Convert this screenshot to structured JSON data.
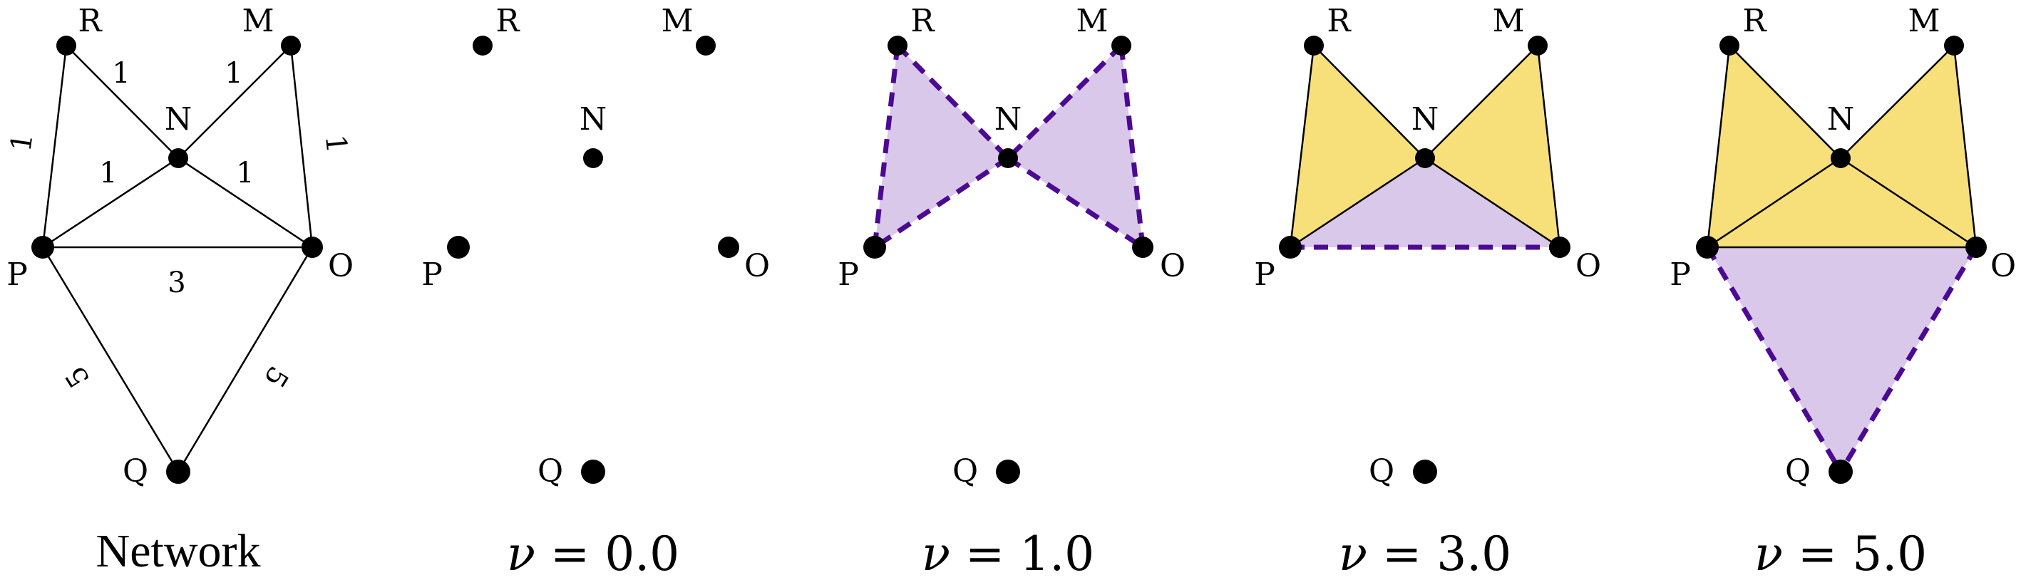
{
  "nodes": [
    "R",
    "M",
    "N",
    "P",
    "O",
    "Q"
  ],
  "edges": [
    {
      "from": "R",
      "to": "P",
      "weight": "1"
    },
    {
      "from": "R",
      "to": "N",
      "weight": "1"
    },
    {
      "from": "M",
      "to": "N",
      "weight": "1"
    },
    {
      "from": "M",
      "to": "O",
      "weight": "1"
    },
    {
      "from": "N",
      "to": "P",
      "weight": "1"
    },
    {
      "from": "N",
      "to": "O",
      "weight": "1"
    },
    {
      "from": "P",
      "to": "O",
      "weight": "3"
    },
    {
      "from": "P",
      "to": "Q",
      "weight": "5"
    },
    {
      "from": "O",
      "to": "Q",
      "weight": "5"
    }
  ],
  "panels": [
    {
      "caption": "Network",
      "kind": "network"
    },
    {
      "caption_symbol": "ν",
      "caption_eq": " = ",
      "caption_value": "0.0",
      "kind": "filtration"
    },
    {
      "caption_symbol": "ν",
      "caption_eq": " = ",
      "caption_value": "1.0",
      "kind": "filtration"
    },
    {
      "caption_symbol": "ν",
      "caption_eq": " = ",
      "caption_value": "3.0",
      "kind": "filtration"
    },
    {
      "caption_symbol": "ν",
      "caption_eq": " = ",
      "caption_value": "5.0",
      "kind": "filtration"
    }
  ],
  "colors": {
    "filled_triangle": "#f7e07a",
    "new_triangle": "#d9c8ea",
    "new_edge": "#4b0a91",
    "edge": "#000000",
    "node": "#000000"
  }
}
